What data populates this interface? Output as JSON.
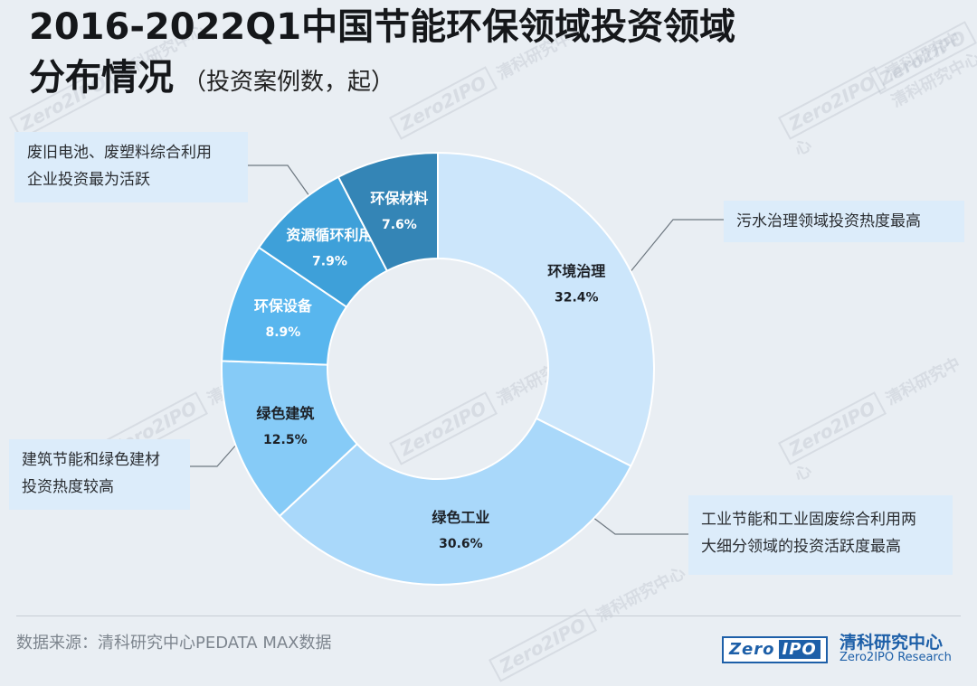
{
  "title": {
    "line1": "2016-2022Q1中国节能环保领域投资领域",
    "line2": "分布情况",
    "unit": "（投资案例数，起）"
  },
  "chart_data": {
    "type": "pie",
    "style": "donut",
    "unit": "%",
    "slices": [
      {
        "label": "环境治理",
        "value": 32.4,
        "value_text": "32.4%",
        "color": "#cce6fb"
      },
      {
        "label": "绿色工业",
        "value": 30.6,
        "value_text": "30.6%",
        "color": "#a9d8fa"
      },
      {
        "label": "绿色建筑",
        "value": 12.5,
        "value_text": "12.5%",
        "color": "#86cbf7"
      },
      {
        "label": "环保设备",
        "value": 8.9,
        "value_text": "8.9%",
        "color": "#58b6ee"
      },
      {
        "label": "资源循环利用",
        "value": 7.9,
        "value_text": "7.9%",
        "color": "#3ea0d9"
      },
      {
        "label": "环保材料",
        "value": 7.6,
        "value_text": "7.6%",
        "color": "#3485b6"
      }
    ]
  },
  "callouts": {
    "recycle": {
      "line1": "废旧电池、废塑料综合利用",
      "line2": "企业投资最为活跃"
    },
    "env": {
      "line1": "污水治理领域投资热度最高"
    },
    "building": {
      "line1": "建筑节能和绿色建材",
      "line2": "投资热度较高"
    },
    "industry": {
      "line1": "工业节能和工业固废综合利用两",
      "line2": "大细分领域的投资活跃度最高"
    }
  },
  "footer": {
    "source": "数据来源：清科研究中心PEDATA MAX数据",
    "brand_logo": "Zero",
    "brand_logo_suffix": "IPO",
    "brand_cn": "清科研究中心",
    "brand_en": "Zero2IPO Research"
  },
  "watermark": {
    "logo": "Zero2IPO",
    "cn": "清科研究中心"
  },
  "colors": {
    "leader_line": "#6d7780",
    "label_dark": "#1c2026",
    "label_light": "#ffffff"
  }
}
